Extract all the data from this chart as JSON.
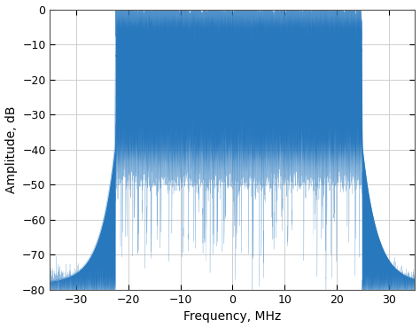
{
  "title": "",
  "xlabel": "Frequency, MHz",
  "ylabel": "Amplitude, dB",
  "xlim": [
    -35,
    35
  ],
  "ylim": [
    -80,
    0
  ],
  "xticks": [
    -30,
    -20,
    -10,
    0,
    10,
    20,
    30
  ],
  "yticks": [
    0,
    -10,
    -20,
    -30,
    -40,
    -50,
    -60,
    -70,
    -80
  ],
  "line_color": "#2878BE",
  "background_color": "#FFFFFF",
  "grid_color": "#C8C8C8",
  "signal_bw_low": -22.5,
  "signal_bw_high": 24.8,
  "passband_top": -3.0,
  "passband_noise_std": 1.8,
  "inband_floor": -42,
  "inband_noise_std": 4.0,
  "outside_level": -38,
  "noise_floor": -78,
  "rolloff_steepness": 18,
  "outside_rolloff_k": 0.35,
  "figsize": [
    4.74,
    3.7
  ],
  "dpi": 100
}
